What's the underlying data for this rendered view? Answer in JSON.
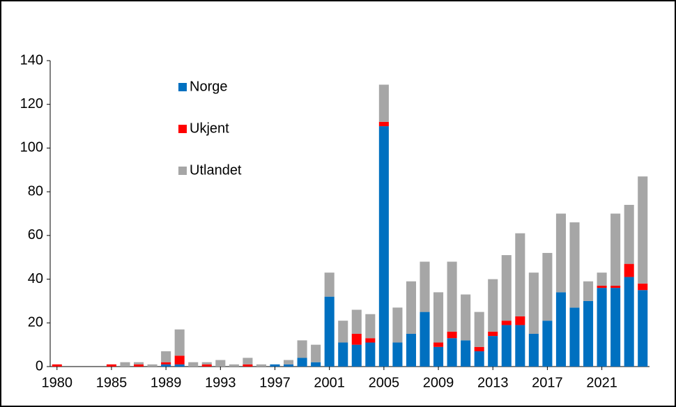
{
  "chart_data": {
    "type": "stacked_bar",
    "categories": [
      "1980",
      null,
      null,
      null,
      "1985",
      null,
      null,
      null,
      "1989",
      null,
      null,
      null,
      "1993",
      null,
      null,
      null,
      "1997",
      null,
      null,
      null,
      "2001",
      null,
      null,
      null,
      "2005",
      null,
      null,
      null,
      "2009",
      null,
      null,
      null,
      "2013",
      null,
      null,
      null,
      "2017",
      null,
      null,
      null,
      "2021",
      null,
      null,
      null
    ],
    "series": [
      {
        "name": "Norge",
        "color": "#0070c0",
        "values": [
          0,
          0,
          0,
          0,
          0,
          0,
          0,
          0,
          1,
          1,
          0,
          0,
          0,
          0,
          0,
          0,
          1,
          1,
          4,
          2,
          32,
          11,
          10,
          11,
          110,
          11,
          15,
          25,
          9,
          13,
          12,
          7,
          14,
          19,
          19,
          15,
          21,
          34,
          27,
          30,
          36,
          36,
          41,
          35
        ]
      },
      {
        "name": "Ukjent",
        "color": "#ff0000",
        "values": [
          1,
          0,
          0,
          0,
          1,
          0,
          1,
          0,
          1,
          4,
          0,
          1,
          0,
          0,
          1,
          0,
          0,
          0,
          0,
          0,
          0,
          0,
          5,
          2,
          2,
          0,
          0,
          0,
          2,
          3,
          0,
          2,
          2,
          2,
          4,
          0,
          0,
          0,
          0,
          0,
          1,
          1,
          6,
          3
        ]
      },
      {
        "name": "Utlandet",
        "color": "#a6a6a6",
        "values": [
          0,
          0,
          0,
          0,
          0,
          2,
          1,
          1,
          5,
          12,
          2,
          1,
          3,
          1,
          3,
          1,
          0,
          2,
          8,
          8,
          11,
          10,
          11,
          11,
          17,
          16,
          24,
          23,
          23,
          32,
          21,
          16,
          24,
          30,
          38,
          28,
          31,
          36,
          39,
          9,
          6,
          33,
          27,
          49
        ]
      }
    ],
    "ylim": [
      0,
      140
    ],
    "yticks": [
      0,
      20,
      40,
      60,
      80,
      100,
      120,
      140
    ]
  }
}
